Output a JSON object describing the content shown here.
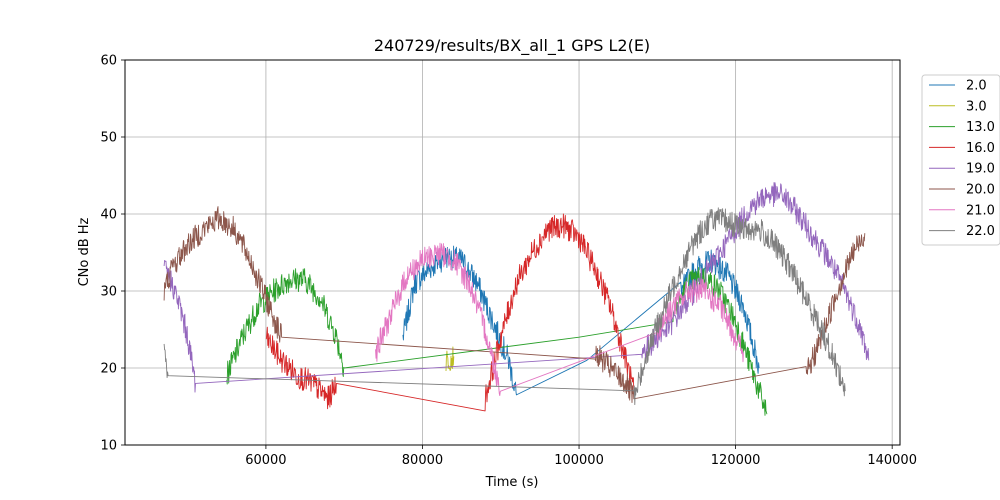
{
  "chart_data": {
    "type": "line",
    "title": "240729/results/BX_all_1 GPS L2(E)",
    "xlabel": "Time (s)",
    "ylabel": "CNo dB Hz",
    "xlim": [
      42000,
      141000
    ],
    "ylim": [
      10,
      60
    ],
    "xticks": [
      60000,
      80000,
      100000,
      120000,
      140000
    ],
    "yticks": [
      10,
      20,
      30,
      40,
      50,
      60
    ],
    "grid": true,
    "legend_position": "outside-upper-right",
    "series": [
      {
        "name": "2.0",
        "color": "#1f77b4",
        "points": [
          [
            77500,
            24
          ],
          [
            79000,
            31
          ],
          [
            81000,
            33
          ],
          [
            83000,
            34.5
          ],
          [
            85000,
            34
          ],
          [
            87000,
            31
          ],
          [
            89000,
            26
          ],
          [
            91000,
            21
          ],
          [
            92000,
            16.5
          ],
          [
            101000,
            21
          ],
          [
            113000,
            30
          ],
          [
            115000,
            33
          ],
          [
            117000,
            34
          ],
          [
            119000,
            32
          ],
          [
            121000,
            28
          ],
          [
            123000,
            20
          ]
        ]
      },
      {
        "name": "3.0",
        "color": "#bcbd22",
        "points": [
          [
            83000,
            21
          ],
          [
            84000,
            21.5
          ]
        ]
      },
      {
        "name": "13.0",
        "color": "#2ca02c",
        "points": [
          [
            55000,
            19
          ],
          [
            57000,
            24
          ],
          [
            59000,
            28
          ],
          [
            61000,
            30
          ],
          [
            63000,
            31.5
          ],
          [
            65000,
            31.5
          ],
          [
            67000,
            29
          ],
          [
            69000,
            24
          ],
          [
            70000,
            20
          ],
          [
            100000,
            24
          ],
          [
            112000,
            27
          ],
          [
            114000,
            31
          ],
          [
            116000,
            32
          ],
          [
            118000,
            30
          ],
          [
            120000,
            26
          ],
          [
            122000,
            20
          ],
          [
            124000,
            14
          ]
        ]
      },
      {
        "name": "16.0",
        "color": "#d62728",
        "points": [
          [
            60000,
            24
          ],
          [
            62000,
            21
          ],
          [
            64000,
            19
          ],
          [
            66000,
            18
          ],
          [
            68000,
            16
          ],
          [
            69000,
            18
          ],
          [
            88000,
            16
          ],
          [
            90000,
            24
          ],
          [
            92000,
            31
          ],
          [
            94000,
            35
          ],
          [
            96000,
            38
          ],
          [
            98000,
            38.5
          ],
          [
            100000,
            37
          ],
          [
            102000,
            33
          ],
          [
            104000,
            28
          ],
          [
            106000,
            21
          ],
          [
            107000,
            17
          ]
        ]
      },
      {
        "name": "19.0",
        "color": "#9467bd",
        "points": [
          [
            47000,
            33
          ],
          [
            48000,
            31
          ],
          [
            49000,
            28
          ],
          [
            50000,
            24
          ],
          [
            51000,
            18
          ],
          [
            108000,
            22
          ],
          [
            110000,
            24
          ],
          [
            112000,
            26
          ],
          [
            114000,
            29
          ],
          [
            116000,
            32
          ],
          [
            118000,
            35
          ],
          [
            120000,
            38
          ],
          [
            122000,
            41
          ],
          [
            124000,
            42.5
          ],
          [
            126000,
            42.5
          ],
          [
            128000,
            40
          ],
          [
            130000,
            37
          ],
          [
            132000,
            34
          ],
          [
            134000,
            30
          ],
          [
            136000,
            25
          ],
          [
            137000,
            21
          ]
        ]
      },
      {
        "name": "20.0",
        "color": "#8c564b",
        "points": [
          [
            47000,
            30
          ],
          [
            48000,
            33
          ],
          [
            50000,
            36
          ],
          [
            52000,
            38
          ],
          [
            54000,
            39.5
          ],
          [
            56000,
            38
          ],
          [
            58000,
            34
          ],
          [
            60000,
            29
          ],
          [
            62000,
            24
          ],
          [
            102000,
            22
          ],
          [
            104000,
            20
          ],
          [
            106000,
            18
          ],
          [
            107000,
            16
          ],
          [
            129000,
            19
          ],
          [
            131000,
            24
          ],
          [
            133000,
            30
          ],
          [
            135000,
            35
          ],
          [
            136500,
            37.5
          ]
        ]
      },
      {
        "name": "21.0",
        "color": "#e377c2",
        "points": [
          [
            74000,
            22
          ],
          [
            76000,
            27
          ],
          [
            78000,
            32
          ],
          [
            80000,
            34
          ],
          [
            82000,
            35
          ],
          [
            84000,
            34
          ],
          [
            86000,
            31
          ],
          [
            88000,
            25
          ],
          [
            90000,
            17
          ],
          [
            110000,
            25
          ],
          [
            112000,
            28
          ],
          [
            114000,
            30
          ],
          [
            116000,
            30
          ],
          [
            118000,
            28
          ],
          [
            120000,
            24
          ],
          [
            121000,
            22
          ]
        ]
      },
      {
        "name": "22.0",
        "color": "#7f7f7f",
        "points": [
          [
            47000,
            22
          ],
          [
            47500,
            19
          ],
          [
            107000,
            16
          ],
          [
            109000,
            23
          ],
          [
            111000,
            28
          ],
          [
            113000,
            33
          ],
          [
            115000,
            37
          ],
          [
            117000,
            39.5
          ],
          [
            119000,
            39
          ],
          [
            121000,
            38
          ],
          [
            123000,
            38
          ],
          [
            125000,
            36
          ],
          [
            127000,
            33
          ],
          [
            129000,
            29
          ],
          [
            131000,
            25
          ],
          [
            133000,
            20
          ],
          [
            134000,
            17
          ]
        ]
      }
    ]
  }
}
